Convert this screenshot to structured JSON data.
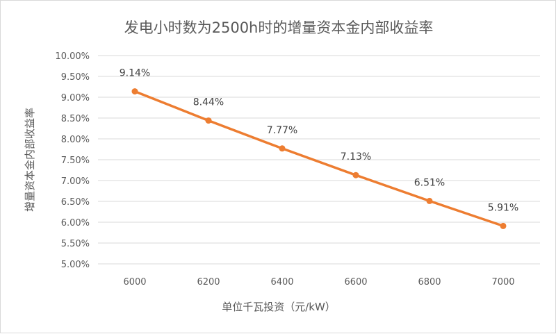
{
  "chart_data": {
    "type": "line",
    "title": "发电小时数为2500h时的增量资本金内部收益率",
    "xlabel": "单位千瓦投资（元/kW）",
    "ylabel": "增量资本金内部收益率",
    "categories": [
      "6000",
      "6200",
      "6400",
      "6600",
      "6800",
      "7000"
    ],
    "series": [
      {
        "values": [
          9.14,
          8.44,
          7.77,
          7.13,
          6.51,
          5.91
        ],
        "data_labels": [
          "9.14%",
          "8.44%",
          "7.77%",
          "7.13%",
          "6.51%",
          "5.91%"
        ]
      }
    ],
    "ylim": [
      5.0,
      10.0
    ],
    "yticks": [
      5.0,
      5.5,
      6.0,
      6.5,
      7.0,
      7.5,
      8.0,
      8.5,
      9.0,
      9.5,
      10.0
    ],
    "ytick_labels": [
      "5.00%",
      "5.50%",
      "6.00%",
      "6.50%",
      "7.00%",
      "7.50%",
      "8.00%",
      "8.50%",
      "9.00%",
      "9.50%",
      "10.00%"
    ],
    "grid": true,
    "legend": "none",
    "colors": {
      "line": "#ed7d31",
      "grid": "#d9d9d9",
      "text": "#595959"
    }
  }
}
